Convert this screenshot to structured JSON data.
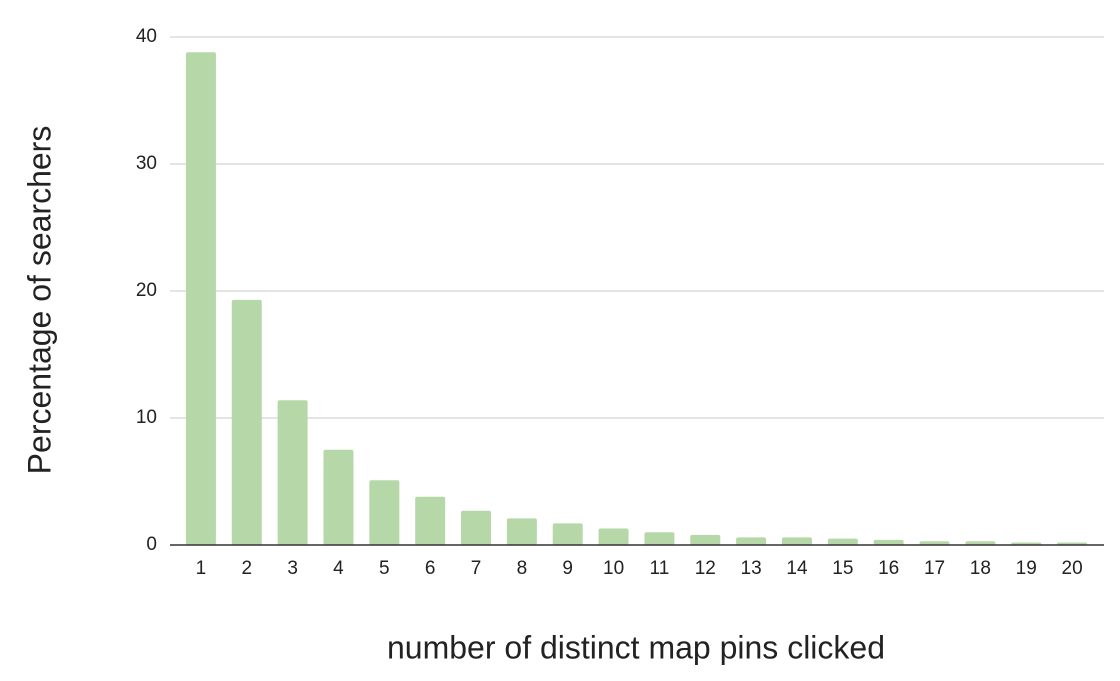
{
  "chart_data": {
    "type": "bar",
    "x_label": "number of distinct map pins clicked",
    "y_label": "Percentage of searchers",
    "categories": [
      "1",
      "2",
      "3",
      "4",
      "5",
      "6",
      "7",
      "8",
      "9",
      "10",
      "11",
      "12",
      "13",
      "14",
      "15",
      "16",
      "17",
      "18",
      "19",
      "20"
    ],
    "values": [
      38.8,
      19.3,
      11.4,
      7.5,
      5.1,
      3.8,
      2.7,
      2.1,
      1.7,
      1.3,
      1.0,
      0.8,
      0.6,
      0.6,
      0.5,
      0.4,
      0.3,
      0.3,
      0.2,
      0.2
    ],
    "color": "#b6d7a8",
    "ylim": [
      0,
      40
    ],
    "yticks": [
      0,
      10,
      20,
      30,
      40
    ],
    "grid": true
  }
}
